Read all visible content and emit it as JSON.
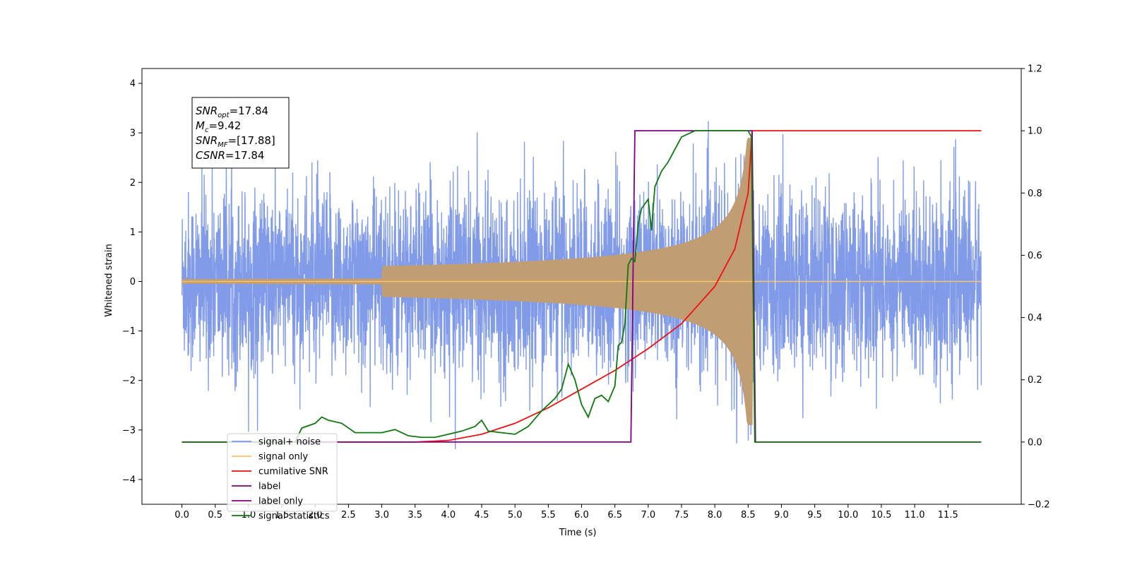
{
  "chart_data": {
    "type": "line",
    "xlabel": "Time (s)",
    "ylabel": "Whitened strain",
    "xlim": [
      -0.6,
      12.6
    ],
    "ylim": [
      -4.5,
      4.3
    ],
    "y2lim": [
      -0.2,
      1.2
    ],
    "grid": false,
    "legend_position": "lower-left",
    "x_ticks": [
      "0.0",
      "0.5",
      "1.0",
      "1.5",
      "2.0",
      "2.5",
      "3.0",
      "3.5",
      "4.0",
      "4.5",
      "5.0",
      "5.5",
      "6.0",
      "6.5",
      "7.0",
      "7.5",
      "8.0",
      "8.5",
      "9.0",
      "9.5",
      "10.0",
      "10.5",
      "11.0",
      "11.5"
    ],
    "y_ticks": [
      "4",
      "3",
      "2",
      "1",
      "0",
      "−1",
      "−2",
      "−3",
      "−4"
    ],
    "y2_ticks": [
      "1.2",
      "1.0",
      "0.8",
      "0.6",
      "0.4",
      "0.2",
      "0.0",
      "−0.2"
    ],
    "annotation": [
      {
        "base": "SNR",
        "sub": "opt",
        "value": "=17.84"
      },
      {
        "base": "M",
        "sub": "c",
        "value": "=9.42"
      },
      {
        "base": "SNR",
        "sub": "MF",
        "value": "=[17.88]"
      },
      {
        "base": "CSNR",
        "sub": "",
        "value": "=17.84"
      }
    ],
    "series": [
      {
        "name": "signal+ noise",
        "axis": "left",
        "color": "#7a96e8",
        "kind": "noise",
        "x_range": [
          0.0,
          12.0
        ],
        "std": 0.9,
        "min": -4.1,
        "max": 3.9
      },
      {
        "name": "signal only",
        "axis": "left",
        "color": "#ffc266",
        "kind": "chirp",
        "x_range": [
          0.0,
          8.6
        ],
        "peak_amplitude": 2.9,
        "peak_time": 8.55
      },
      {
        "name": "cumilative SNR",
        "axis": "right",
        "color": "#ee1111",
        "x": [
          0.0,
          3.5,
          4.0,
          4.5,
          5.0,
          5.5,
          6.0,
          6.5,
          7.0,
          7.5,
          8.0,
          8.3,
          8.5,
          8.56,
          8.6,
          12.0
        ],
        "y": [
          0.0,
          0.0,
          0.005,
          0.025,
          0.06,
          0.11,
          0.17,
          0.23,
          0.3,
          0.38,
          0.5,
          0.62,
          0.8,
          1.0,
          1.0,
          1.0
        ]
      },
      {
        "name": "label",
        "axis": "right",
        "color": "#800080",
        "x": [
          0.0,
          6.74,
          6.8,
          8.56,
          8.61,
          12.0
        ],
        "y": [
          0.0,
          0.0,
          1.0,
          1.0,
          0.0,
          0.0
        ]
      },
      {
        "name": "label only",
        "axis": "right",
        "color": "#800080",
        "legend_only": true,
        "x": [],
        "y": []
      },
      {
        "name": "signal statistics",
        "axis": "right",
        "color": "#117711",
        "x": [
          0.0,
          1.0,
          1.7,
          1.8,
          2.0,
          2.1,
          2.2,
          2.4,
          2.6,
          2.8,
          3.0,
          3.2,
          3.4,
          3.6,
          3.8,
          4.0,
          4.2,
          4.4,
          4.5,
          4.6,
          4.8,
          5.0,
          5.2,
          5.4,
          5.6,
          5.7,
          5.8,
          5.9,
          6.0,
          6.1,
          6.2,
          6.3,
          6.4,
          6.5,
          6.55,
          6.6,
          6.65,
          6.7,
          6.75,
          6.8,
          6.85,
          6.9,
          7.0,
          7.05,
          7.1,
          7.2,
          7.3,
          7.4,
          7.5,
          7.6,
          7.7,
          7.8,
          8.0,
          8.2,
          8.4,
          8.5,
          8.55,
          8.6,
          8.61,
          8.65,
          12.0
        ],
        "y": [
          0.0,
          0.0,
          0.0,
          0.045,
          0.06,
          0.08,
          0.07,
          0.06,
          0.03,
          0.03,
          0.03,
          0.04,
          0.02,
          0.015,
          0.015,
          0.025,
          0.035,
          0.05,
          0.07,
          0.035,
          0.03,
          0.025,
          0.05,
          0.1,
          0.14,
          0.17,
          0.25,
          0.2,
          0.12,
          0.08,
          0.14,
          0.15,
          0.13,
          0.18,
          0.31,
          0.32,
          0.38,
          0.57,
          0.59,
          0.58,
          0.7,
          0.75,
          0.78,
          0.68,
          0.82,
          0.87,
          0.9,
          0.94,
          0.98,
          0.99,
          1.0,
          1.0,
          1.0,
          1.0,
          1.0,
          1.0,
          0.98,
          0.0,
          0.0,
          0.0,
          0.0
        ]
      }
    ]
  }
}
